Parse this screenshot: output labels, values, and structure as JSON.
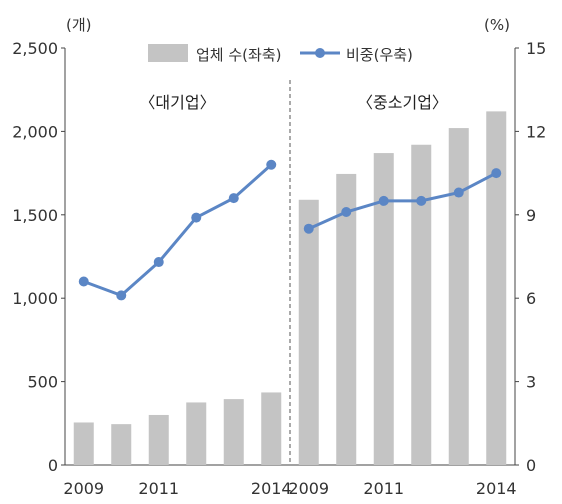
{
  "chart_data": {
    "type": "bar+line",
    "left_axis": {
      "unit": "(개)",
      "ylim": [
        0,
        2500
      ],
      "ticks": [
        0,
        500,
        1000,
        1500,
        2000,
        2500
      ],
      "tick_labels": [
        "0",
        "500",
        "1,000",
        "1,500",
        "2,000",
        "2,500"
      ]
    },
    "right_axis": {
      "unit": "(%)",
      "ylim": [
        0,
        15
      ],
      "ticks": [
        0,
        3,
        6,
        9,
        12,
        15
      ],
      "tick_labels": [
        "0",
        "3",
        "6",
        "9",
        "12",
        "15"
      ]
    },
    "legend": [
      {
        "label": "업체 수(좌축)",
        "kind": "bar"
      },
      {
        "label": "비중(우축)",
        "kind": "line"
      }
    ],
    "panels": [
      {
        "label": "〈대기업〉",
        "x": [
          2009,
          2010,
          2011,
          2012,
          2013,
          2014
        ],
        "x_tick_labels": [
          "2009",
          "",
          "2011",
          "",
          "",
          "2014"
        ],
        "series": [
          {
            "name": "업체 수(좌축)",
            "axis": "left",
            "type": "bar",
            "values": [
              255,
              245,
              300,
              375,
              395,
              435
            ]
          },
          {
            "name": "비중(우축)",
            "axis": "right",
            "type": "line",
            "values": [
              6.6,
              6.1,
              7.3,
              8.9,
              9.6,
              10.8
            ]
          }
        ]
      },
      {
        "label": "〈중소기업〉",
        "x": [
          2009,
          2010,
          2011,
          2012,
          2013,
          2014
        ],
        "x_tick_labels": [
          "2009",
          "",
          "2011",
          "",
          "",
          "2014"
        ],
        "series": [
          {
            "name": "업체 수(좌축)",
            "axis": "left",
            "type": "bar",
            "values": [
              1590,
              1745,
              1870,
              1920,
              2020,
              2120
            ]
          },
          {
            "name": "비중(우축)",
            "axis": "right",
            "type": "line",
            "values": [
              8.5,
              9.1,
              9.5,
              9.5,
              9.8,
              10.5
            ]
          }
        ]
      }
    ],
    "colors": {
      "bar": "#c4c4c4",
      "line": "#5b86c5",
      "divider": "#555555",
      "axis": "#444444"
    },
    "grid": false,
    "legend_position": "top-center"
  }
}
